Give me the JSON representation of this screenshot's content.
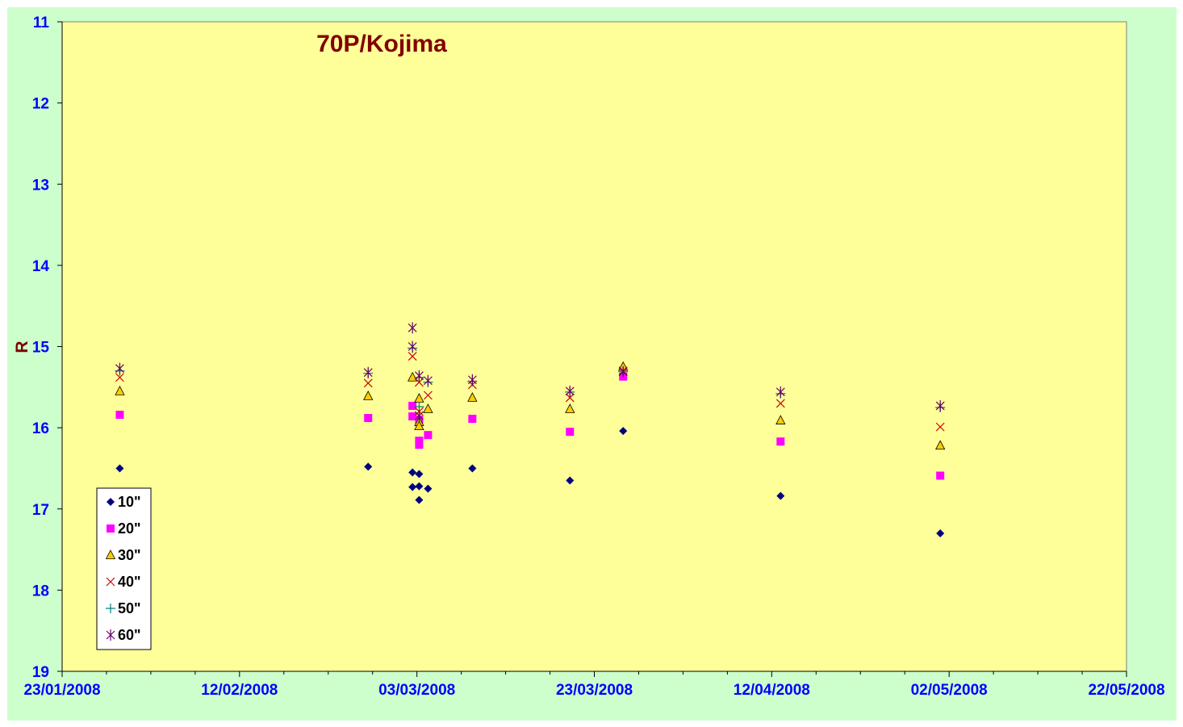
{
  "colors": {
    "outer_background": "#ccffcc",
    "plot_background": "#ffff99",
    "title": "#800000",
    "tick_labels": "#0000ff",
    "axis_label": "#800000"
  },
  "chart_data": {
    "type": "scatter",
    "title": "70P/Kojima",
    "xlabel": "",
    "ylabel": "R",
    "x_is_date": true,
    "xlim": [
      "2008-01-23",
      "2008-05-22"
    ],
    "ylim": [
      11,
      19
    ],
    "y_inverted": true,
    "grid": false,
    "legend_position": "bottom-left",
    "x_ticks": [
      "23/01/2008",
      "12/02/2008",
      "03/03/2008",
      "23/03/2008",
      "12/04/2008",
      "02/05/2008",
      "22/05/2008"
    ],
    "x_tick_dates": [
      "2008-01-23",
      "2008-02-12",
      "2008-03-03",
      "2008-03-23",
      "2008-04-12",
      "2008-05-02",
      "2008-05-22"
    ],
    "y_ticks": [
      11,
      12,
      13,
      14,
      15,
      16,
      17,
      18,
      19
    ],
    "series": [
      {
        "name": "10\"",
        "marker": "diamond",
        "color": "#000080",
        "points": [
          {
            "x": "2008-01-29 12:00",
            "y": 16.5
          },
          {
            "x": "2008-02-26 12:00",
            "y": 16.48
          },
          {
            "x": "2008-03-02 12:00",
            "y": 16.55
          },
          {
            "x": "2008-03-02 12:00",
            "y": 16.73
          },
          {
            "x": "2008-03-03 06:00",
            "y": 16.57
          },
          {
            "x": "2008-03-03 06:00",
            "y": 16.72
          },
          {
            "x": "2008-03-03 06:00",
            "y": 16.89
          },
          {
            "x": "2008-03-04 06:00",
            "y": 16.75
          },
          {
            "x": "2008-03-09 06:00",
            "y": 16.5
          },
          {
            "x": "2008-03-20 06:00",
            "y": 16.65
          },
          {
            "x": "2008-03-26 06:00",
            "y": 16.04
          },
          {
            "x": "2008-04-13 00:00",
            "y": 16.84
          },
          {
            "x": "2008-05-01 00:00",
            "y": 17.3
          }
        ]
      },
      {
        "name": "20\"",
        "marker": "square",
        "color": "#ff00ff",
        "points": [
          {
            "x": "2008-01-29 12:00",
            "y": 15.84
          },
          {
            "x": "2008-02-26 12:00",
            "y": 15.88
          },
          {
            "x": "2008-03-02 12:00",
            "y": 15.73
          },
          {
            "x": "2008-03-02 12:00",
            "y": 15.86
          },
          {
            "x": "2008-03-03 06:00",
            "y": 15.9
          },
          {
            "x": "2008-03-03 06:00",
            "y": 16.16
          },
          {
            "x": "2008-03-03 06:00",
            "y": 16.21
          },
          {
            "x": "2008-03-04 06:00",
            "y": 16.09
          },
          {
            "x": "2008-03-09 06:00",
            "y": 15.89
          },
          {
            "x": "2008-03-20 06:00",
            "y": 16.05
          },
          {
            "x": "2008-03-26 06:00",
            "y": 15.37
          },
          {
            "x": "2008-04-13 00:00",
            "y": 16.17
          },
          {
            "x": "2008-05-01 00:00",
            "y": 16.59
          }
        ]
      },
      {
        "name": "30\"",
        "marker": "triangle",
        "color": "#ffcc00",
        "points": [
          {
            "x": "2008-01-29 12:00",
            "y": 15.55
          },
          {
            "x": "2008-02-26 12:00",
            "y": 15.61
          },
          {
            "x": "2008-03-02 12:00",
            "y": 15.38
          },
          {
            "x": "2008-03-03 06:00",
            "y": 15.64
          },
          {
            "x": "2008-03-03 06:00",
            "y": 15.93
          },
          {
            "x": "2008-03-03 06:00",
            "y": 15.98
          },
          {
            "x": "2008-03-04 06:00",
            "y": 15.77
          },
          {
            "x": "2008-03-09 06:00",
            "y": 15.63
          },
          {
            "x": "2008-03-20 06:00",
            "y": 15.77
          },
          {
            "x": "2008-03-26 06:00",
            "y": 15.25
          },
          {
            "x": "2008-04-13 00:00",
            "y": 15.91
          },
          {
            "x": "2008-05-01 00:00",
            "y": 16.22
          }
        ]
      },
      {
        "name": "40\"",
        "marker": "x",
        "color": "#cc0000",
        "points": [
          {
            "x": "2008-01-29 12:00",
            "y": 15.38
          },
          {
            "x": "2008-02-26 12:00",
            "y": 15.45
          },
          {
            "x": "2008-03-02 12:00",
            "y": 15.12
          },
          {
            "x": "2008-03-03 06:00",
            "y": 15.44
          },
          {
            "x": "2008-03-03 06:00",
            "y": 15.8
          },
          {
            "x": "2008-03-04 06:00",
            "y": 15.6
          },
          {
            "x": "2008-03-09 06:00",
            "y": 15.47
          },
          {
            "x": "2008-03-20 06:00",
            "y": 15.63
          },
          {
            "x": "2008-03-26 06:00",
            "y": 15.3
          },
          {
            "x": "2008-04-13 00:00",
            "y": 15.7
          },
          {
            "x": "2008-05-01 00:00",
            "y": 15.99
          }
        ]
      },
      {
        "name": "50\"",
        "marker": "plus",
        "color": "#008080",
        "points": [
          {
            "x": "2008-01-29 12:00",
            "y": 15.3
          },
          {
            "x": "2008-02-26 12:00",
            "y": 15.33
          },
          {
            "x": "2008-03-02 12:00",
            "y": 15.02
          },
          {
            "x": "2008-03-03 06:00",
            "y": 15.38
          },
          {
            "x": "2008-03-03 06:00",
            "y": 15.74
          },
          {
            "x": "2008-03-04 06:00",
            "y": 15.44
          },
          {
            "x": "2008-03-09 06:00",
            "y": 15.43
          },
          {
            "x": "2008-03-20 06:00",
            "y": 15.56
          },
          {
            "x": "2008-03-26 06:00",
            "y": 15.31
          },
          {
            "x": "2008-04-13 00:00",
            "y": 15.58
          },
          {
            "x": "2008-05-01 00:00",
            "y": 15.75
          }
        ]
      },
      {
        "name": "60\"",
        "marker": "asterisk",
        "color": "#660066",
        "points": [
          {
            "x": "2008-01-29 12:00",
            "y": 15.27
          },
          {
            "x": "2008-02-26 12:00",
            "y": 15.32
          },
          {
            "x": "2008-03-02 12:00",
            "y": 14.77
          },
          {
            "x": "2008-03-02 12:00",
            "y": 15.0
          },
          {
            "x": "2008-03-03 06:00",
            "y": 15.36
          },
          {
            "x": "2008-03-03 06:00",
            "y": 15.85
          },
          {
            "x": "2008-03-04 06:00",
            "y": 15.42
          },
          {
            "x": "2008-03-09 06:00",
            "y": 15.41
          },
          {
            "x": "2008-03-20 06:00",
            "y": 15.55
          },
          {
            "x": "2008-03-26 06:00",
            "y": 15.31
          },
          {
            "x": "2008-04-13 00:00",
            "y": 15.56
          },
          {
            "x": "2008-05-01 00:00",
            "y": 15.73
          }
        ]
      }
    ]
  }
}
